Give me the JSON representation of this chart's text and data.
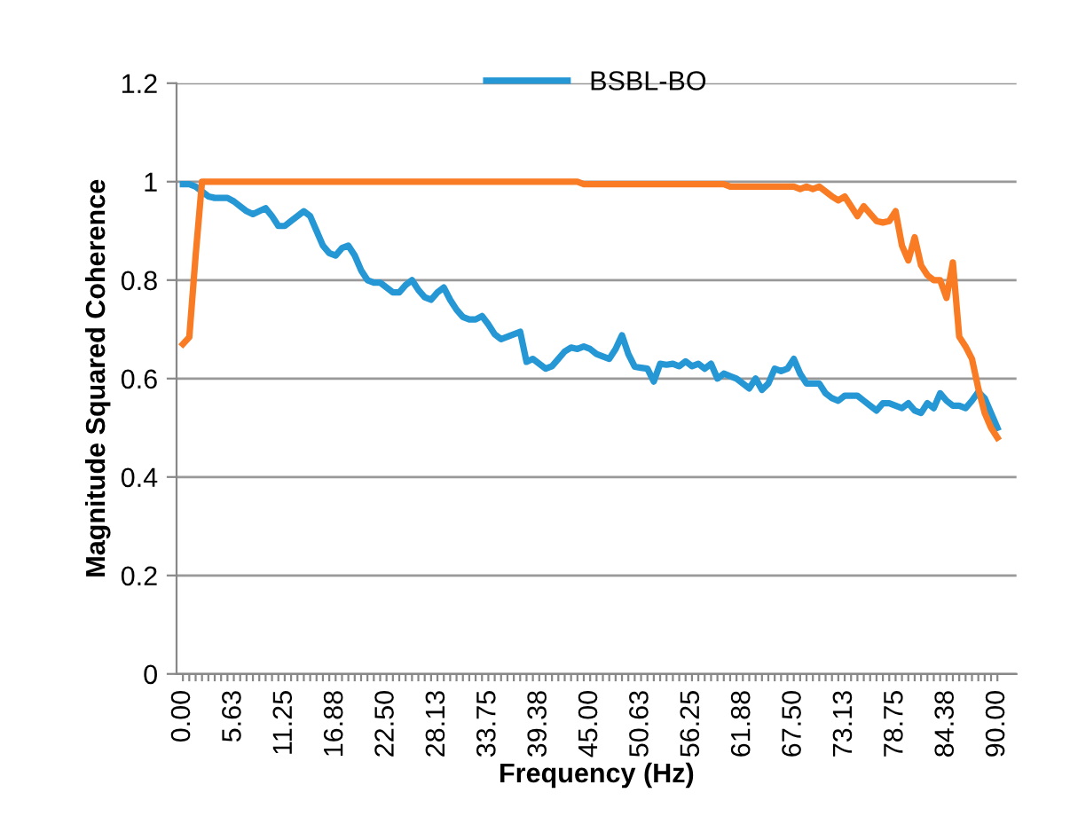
{
  "chart_data": {
    "type": "line",
    "xlabel": "Frequency (Hz)",
    "ylabel": "Magnitude Squared Coherence",
    "categories": [
      "0.00",
      null,
      null,
      null,
      null,
      null,
      null,
      null,
      "5.63",
      null,
      null,
      null,
      null,
      null,
      null,
      null,
      "11.25",
      null,
      null,
      null,
      null,
      null,
      null,
      null,
      "16.88",
      null,
      null,
      null,
      null,
      null,
      null,
      null,
      "22.50",
      null,
      null,
      null,
      null,
      null,
      null,
      null,
      "28.13",
      null,
      null,
      null,
      null,
      null,
      null,
      null,
      "33.75",
      null,
      null,
      null,
      null,
      null,
      null,
      null,
      "39.38",
      null,
      null,
      null,
      null,
      null,
      null,
      null,
      "45.00",
      null,
      null,
      null,
      null,
      null,
      null,
      null,
      "50.63",
      null,
      null,
      null,
      null,
      null,
      null,
      null,
      "56.25",
      null,
      null,
      null,
      null,
      null,
      null,
      null,
      "61.88",
      null,
      null,
      null,
      null,
      null,
      null,
      null,
      "67.50",
      null,
      null,
      null,
      null,
      null,
      null,
      null,
      "73.13",
      null,
      null,
      null,
      null,
      null,
      null,
      null,
      "78.75",
      null,
      null,
      null,
      null,
      null,
      null,
      null,
      "84.38",
      null,
      null,
      null,
      null,
      null,
      null,
      null,
      "90.00"
    ],
    "series": [
      {
        "name": "BSBL-BO",
        "color": "#2597d4",
        "values": [
          0.995,
          0.995,
          0.99,
          0.98,
          0.97,
          0.967,
          0.967,
          0.967,
          0.96,
          0.95,
          0.94,
          0.934,
          0.94,
          0.946,
          0.93,
          0.91,
          0.91,
          0.92,
          0.93,
          0.94,
          0.93,
          0.9,
          0.87,
          0.855,
          0.85,
          0.865,
          0.87,
          0.85,
          0.82,
          0.8,
          0.795,
          0.795,
          0.785,
          0.775,
          0.775,
          0.79,
          0.8,
          0.78,
          0.765,
          0.76,
          0.775,
          0.785,
          0.76,
          0.74,
          0.725,
          0.72,
          0.72,
          0.727,
          0.71,
          0.69,
          0.68,
          0.685,
          0.69,
          0.695,
          0.634,
          0.64,
          0.63,
          0.62,
          0.625,
          0.64,
          0.655,
          0.663,
          0.66,
          0.665,
          0.66,
          0.65,
          0.645,
          0.64,
          0.66,
          0.688,
          0.65,
          0.624,
          0.622,
          0.62,
          0.594,
          0.63,
          0.628,
          0.63,
          0.625,
          0.635,
          0.625,
          0.63,
          0.62,
          0.63,
          0.6,
          0.61,
          0.605,
          0.6,
          0.59,
          0.58,
          0.6,
          0.577,
          0.59,
          0.62,
          0.615,
          0.62,
          0.64,
          0.61,
          0.59,
          0.59,
          0.59,
          0.57,
          0.56,
          0.555,
          0.565,
          0.565,
          0.565,
          0.555,
          0.545,
          0.535,
          0.55,
          0.55,
          0.545,
          0.54,
          0.55,
          0.535,
          0.53,
          0.55,
          0.54,
          0.57,
          0.555,
          0.545,
          0.545,
          0.54,
          0.555,
          0.573,
          0.56,
          0.53,
          0.5
        ]
      },
      {
        "color": "#f97c24",
        "values": [
          0.67,
          0.684,
          0.85,
          1,
          1,
          1,
          1,
          1,
          1,
          1,
          1,
          1,
          1,
          1,
          1,
          1,
          1,
          1,
          1,
          1,
          1,
          1,
          1,
          1,
          1,
          1,
          1,
          1,
          1,
          1,
          1,
          1,
          1,
          1,
          1,
          1,
          1,
          1,
          1,
          1,
          1,
          1,
          1,
          1,
          1,
          1,
          1,
          1,
          1,
          1,
          1,
          1,
          1,
          1,
          1,
          1,
          1,
          1,
          1,
          1,
          1,
          1,
          1,
          0.995,
          0.995,
          0.995,
          0.995,
          0.995,
          0.995,
          0.995,
          0.995,
          0.995,
          0.995,
          0.995,
          0.995,
          0.995,
          0.995,
          0.995,
          0.995,
          0.995,
          0.995,
          0.995,
          0.995,
          0.995,
          0.995,
          0.995,
          0.99,
          0.99,
          0.99,
          0.99,
          0.99,
          0.99,
          0.99,
          0.99,
          0.99,
          0.99,
          0.99,
          0.985,
          0.99,
          0.985,
          0.99,
          0.98,
          0.97,
          0.962,
          0.97,
          0.95,
          0.93,
          0.95,
          0.935,
          0.92,
          0.917,
          0.92,
          0.94,
          0.87,
          0.84,
          0.887,
          0.83,
          0.81,
          0.8,
          0.8,
          0.764,
          0.836,
          0.685,
          0.665,
          0.64,
          0.58,
          0.53,
          0.5,
          0.48
        ]
      }
    ],
    "ylim": [
      0,
      1.2
    ],
    "yticks": [
      0,
      0.2,
      0.4,
      0.6,
      0.8,
      1,
      1.2
    ],
    "grid": "y",
    "legend": "top",
    "marker": "none",
    "line_style": "solid"
  }
}
